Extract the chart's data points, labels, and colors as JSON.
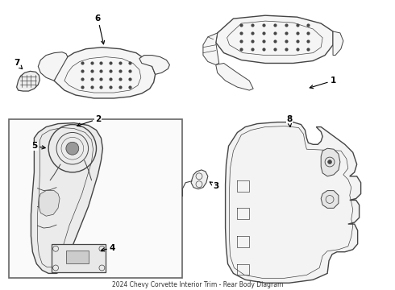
{
  "title": "2024 Chevy Corvette Interior Trim - Rear Body Diagram",
  "bg_color": "#ffffff",
  "line_color": "#444444",
  "label_color": "#000000",
  "fig_width": 4.9,
  "fig_height": 3.6,
  "dpi": 100
}
